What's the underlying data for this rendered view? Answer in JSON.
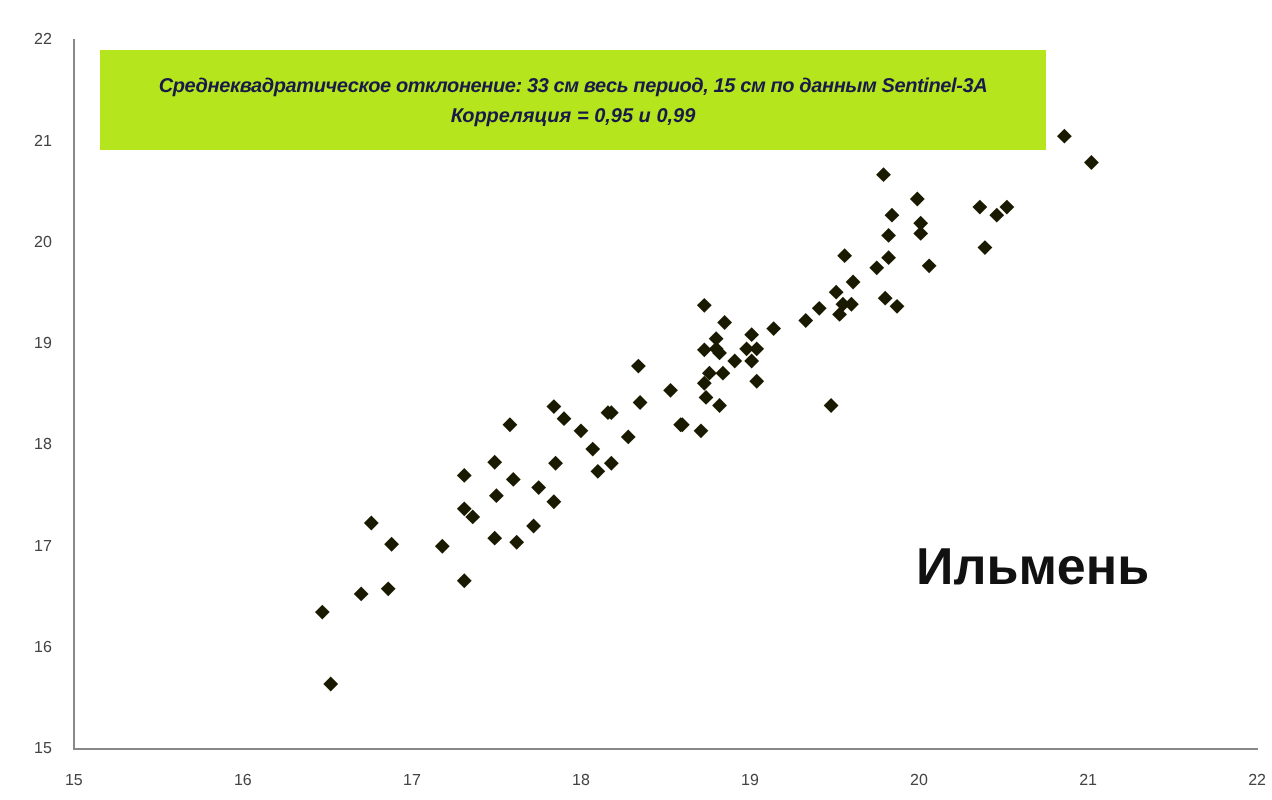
{
  "chart_data": {
    "type": "scatter",
    "title": "Среднеквадратическое отклонение: 33 см весь период, 15 см по данным Sentinel-3A",
    "subtitle": "Корреляция = 0,95 и 0,99",
    "annotations": [
      "Ильмень"
    ],
    "series": [
      {
        "color": "#1a1a00",
        "x": [
          16.47,
          16.52,
          16.76,
          16.7,
          16.86,
          16.88,
          17.18,
          17.31,
          17.31,
          17.31,
          17.36,
          17.49,
          17.49,
          17.5,
          17.58,
          17.6,
          17.62,
          17.72,
          17.75,
          17.84,
          17.85,
          17.84,
          17.9,
          18.0,
          18.07,
          18.1,
          18.16,
          18.18,
          18.18,
          18.28,
          18.34,
          18.35,
          18.53,
          18.59,
          18.6,
          18.71,
          18.73,
          18.73,
          18.74,
          18.73,
          18.76,
          18.8,
          18.8,
          18.82,
          18.84,
          18.82,
          18.85,
          18.91,
          18.98,
          19.01,
          19.01,
          19.04,
          19.04,
          19.14,
          19.33,
          19.41,
          19.48,
          19.51,
          19.53,
          19.55,
          19.6,
          19.56,
          19.61,
          19.75,
          19.8,
          19.82,
          19.82,
          19.84,
          19.79,
          19.87,
          19.99,
          20.01,
          20.01,
          20.06,
          20.36,
          20.39,
          20.46,
          20.52,
          20.86,
          21.02
        ],
        "values": [
          16.35,
          15.64,
          17.23,
          16.53,
          16.58,
          17.02,
          17.0,
          16.66,
          17.7,
          17.37,
          17.29,
          17.08,
          17.83,
          17.5,
          18.2,
          17.66,
          17.04,
          17.2,
          17.58,
          17.44,
          17.82,
          18.38,
          18.26,
          18.14,
          17.96,
          17.74,
          18.32,
          18.32,
          17.82,
          18.08,
          18.78,
          18.42,
          18.54,
          18.2,
          18.2,
          18.14,
          19.38,
          18.94,
          18.47,
          18.61,
          18.71,
          19.05,
          18.95,
          18.91,
          18.71,
          18.39,
          19.21,
          18.83,
          18.95,
          19.09,
          18.83,
          18.95,
          18.63,
          19.15,
          19.23,
          19.35,
          18.39,
          19.51,
          19.29,
          19.39,
          19.39,
          19.87,
          19.61,
          19.75,
          19.45,
          19.85,
          20.07,
          20.27,
          20.67,
          19.37,
          20.43,
          20.19,
          20.09,
          19.77,
          20.35,
          19.95,
          20.27,
          20.35,
          21.05,
          20.79
        ]
      }
    ],
    "xlim": [
      15,
      22
    ],
    "xticks": [
      15,
      16,
      17,
      18,
      19,
      20,
      21,
      22
    ],
    "ylim": [
      15,
      22
    ],
    "yticks": [
      15,
      16,
      17,
      18,
      19,
      20,
      21,
      22
    ],
    "grid": false,
    "legend": false,
    "marker": "diamond"
  }
}
